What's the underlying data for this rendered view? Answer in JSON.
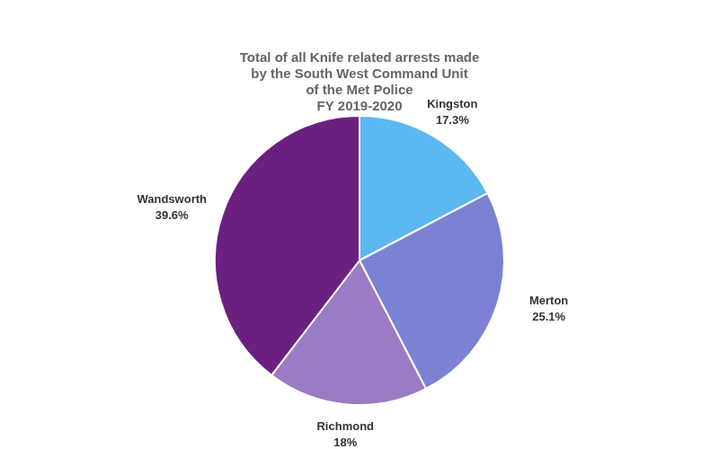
{
  "chart_data": {
    "type": "pie",
    "title": [
      "Total of all Knife related arrests made",
      "by the South West Command Unit",
      "of the Met Police",
      "FY 2019-2020"
    ],
    "categories": [
      "Kingston",
      "Merton",
      "Richmond",
      "Wandsworth"
    ],
    "values": [
      17.3,
      25.1,
      18.0,
      39.6
    ],
    "value_labels": [
      "17.3%",
      "25.1%",
      "18%",
      "39.6%"
    ],
    "colors": [
      "#5BB8F0",
      "#7B82D4",
      "#9B7BC4",
      "#6B2080"
    ],
    "data_labels": true
  }
}
